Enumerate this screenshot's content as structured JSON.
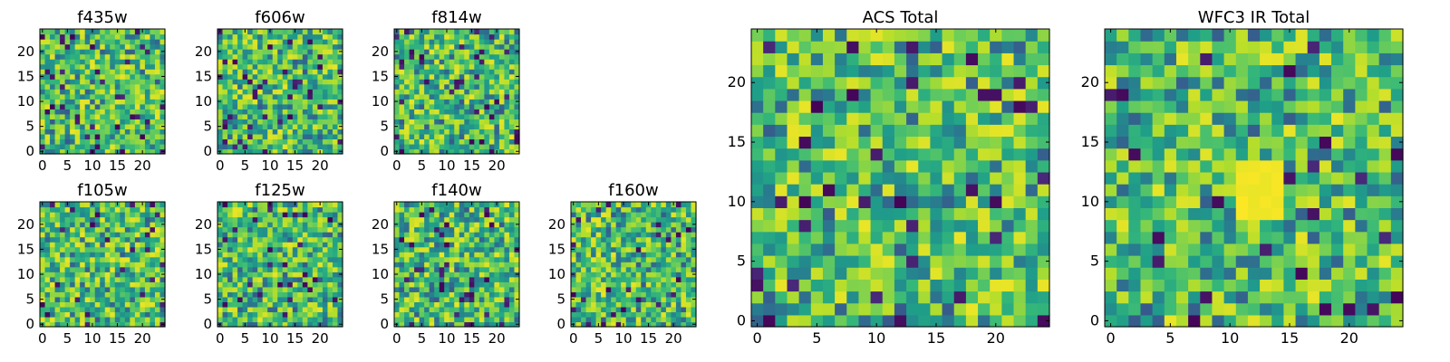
{
  "figure": {
    "background": "#ffffff"
  },
  "chart_data": [
    {
      "type": "heatmap",
      "title": "f435w",
      "grid": [
        25,
        25
      ],
      "seed": 11,
      "colormap": "viridis",
      "xticks": [
        "0",
        "5",
        "10",
        "15",
        "20"
      ],
      "yticks": [
        "0",
        "5",
        "10",
        "15",
        "20"
      ],
      "xlim": [
        -0.5,
        24.5
      ],
      "ylim": [
        -0.5,
        24.5
      ]
    },
    {
      "type": "heatmap",
      "title": "f606w",
      "grid": [
        25,
        25
      ],
      "seed": 23,
      "colormap": "viridis",
      "xticks": [
        "0",
        "5",
        "10",
        "15",
        "20"
      ],
      "yticks": [
        "0",
        "5",
        "10",
        "15",
        "20"
      ],
      "xlim": [
        -0.5,
        24.5
      ],
      "ylim": [
        -0.5,
        24.5
      ]
    },
    {
      "type": "heatmap",
      "title": "f814w",
      "grid": [
        25,
        25
      ],
      "seed": 37,
      "colormap": "viridis",
      "xticks": [
        "0",
        "5",
        "10",
        "15",
        "20"
      ],
      "yticks": [
        "0",
        "5",
        "10",
        "15",
        "20"
      ],
      "xlim": [
        -0.5,
        24.5
      ],
      "ylim": [
        -0.5,
        24.5
      ]
    },
    {
      "type": "heatmap",
      "title": "f105w",
      "grid": [
        25,
        25
      ],
      "seed": 41,
      "colormap": "viridis",
      "xticks": [
        "0",
        "5",
        "10",
        "15",
        "20"
      ],
      "yticks": [
        "0",
        "5",
        "10",
        "15",
        "20"
      ],
      "xlim": [
        -0.5,
        24.5
      ],
      "ylim": [
        -0.5,
        24.5
      ]
    },
    {
      "type": "heatmap",
      "title": "f125w",
      "grid": [
        25,
        25
      ],
      "seed": 53,
      "colormap": "viridis",
      "xticks": [
        "0",
        "5",
        "10",
        "15",
        "20"
      ],
      "yticks": [
        "0",
        "5",
        "10",
        "15",
        "20"
      ],
      "xlim": [
        -0.5,
        24.5
      ],
      "ylim": [
        -0.5,
        24.5
      ]
    },
    {
      "type": "heatmap",
      "title": "f140w",
      "grid": [
        25,
        25
      ],
      "seed": 67,
      "colormap": "viridis",
      "xticks": [
        "0",
        "5",
        "10",
        "15",
        "20"
      ],
      "yticks": [
        "0",
        "5",
        "10",
        "15",
        "20"
      ],
      "xlim": [
        -0.5,
        24.5
      ],
      "ylim": [
        -0.5,
        24.5
      ]
    },
    {
      "type": "heatmap",
      "title": "f160w",
      "grid": [
        25,
        25
      ],
      "seed": 79,
      "colormap": "viridis",
      "xticks": [
        "0",
        "5",
        "10",
        "15",
        "20"
      ],
      "yticks": [
        "0",
        "5",
        "10",
        "15",
        "20"
      ],
      "xlim": [
        -0.5,
        24.5
      ],
      "ylim": [
        -0.5,
        24.5
      ]
    },
    {
      "type": "heatmap",
      "title": "ACS Total",
      "grid": [
        25,
        25
      ],
      "seed": 97,
      "colormap": "viridis",
      "xticks": [
        "0",
        "5",
        "10",
        "15",
        "20"
      ],
      "yticks": [
        "0",
        "5",
        "10",
        "15",
        "20"
      ],
      "xlim": [
        -0.5,
        24.5
      ],
      "ylim": [
        -0.5,
        24.5
      ]
    },
    {
      "type": "heatmap",
      "title": "WFC3 IR Total",
      "grid": [
        25,
        25
      ],
      "seed": 113,
      "colormap": "viridis",
      "xticks": [
        "0",
        "5",
        "10",
        "15",
        "20"
      ],
      "yticks": [
        "0",
        "5",
        "10",
        "15",
        "20"
      ],
      "xlim": [
        -0.5,
        24.5
      ],
      "ylim": [
        -0.5,
        24.5
      ],
      "bright_region": {
        "x": [
          11,
          14
        ],
        "y": [
          9,
          13
        ]
      }
    }
  ]
}
